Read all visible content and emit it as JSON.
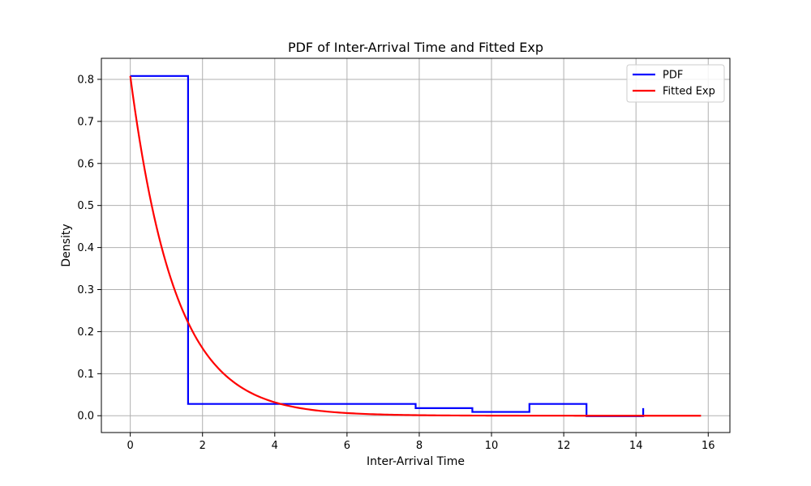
{
  "chart_data": {
    "type": "line",
    "title": "PDF of Inter-Arrival Time and Fitted Exp",
    "xlabel": "Inter-Arrival Time",
    "ylabel": "Density",
    "xlim": [
      -0.8,
      16.6
    ],
    "ylim": [
      -0.04,
      0.85
    ],
    "xticks": [
      0,
      2,
      4,
      6,
      8,
      10,
      12,
      14,
      16
    ],
    "yticks": [
      0.0,
      0.1,
      0.2,
      0.3,
      0.4,
      0.5,
      0.6,
      0.7,
      0.8
    ],
    "grid": true,
    "legend_position": "top-right",
    "series": [
      {
        "name": "PDF",
        "color": "#0000ff",
        "style": "step",
        "points": [
          [
            0.0,
            0.808
          ],
          [
            1.6,
            0.808
          ],
          [
            1.6,
            0.028
          ],
          [
            7.9,
            0.028
          ],
          [
            7.9,
            0.018
          ],
          [
            9.47,
            0.018
          ],
          [
            9.47,
            0.009
          ],
          [
            11.05,
            0.009
          ],
          [
            11.05,
            0.028
          ],
          [
            12.63,
            0.028
          ],
          [
            12.63,
            -0.001
          ],
          [
            14.2,
            -0.001
          ],
          [
            14.2,
            0.018
          ]
        ]
      },
      {
        "name": "Fitted Exp",
        "color": "#ff0000",
        "style": "curve",
        "function": "exponential",
        "rate": 0.808,
        "x_range": [
          0,
          15.8
        ]
      }
    ]
  }
}
